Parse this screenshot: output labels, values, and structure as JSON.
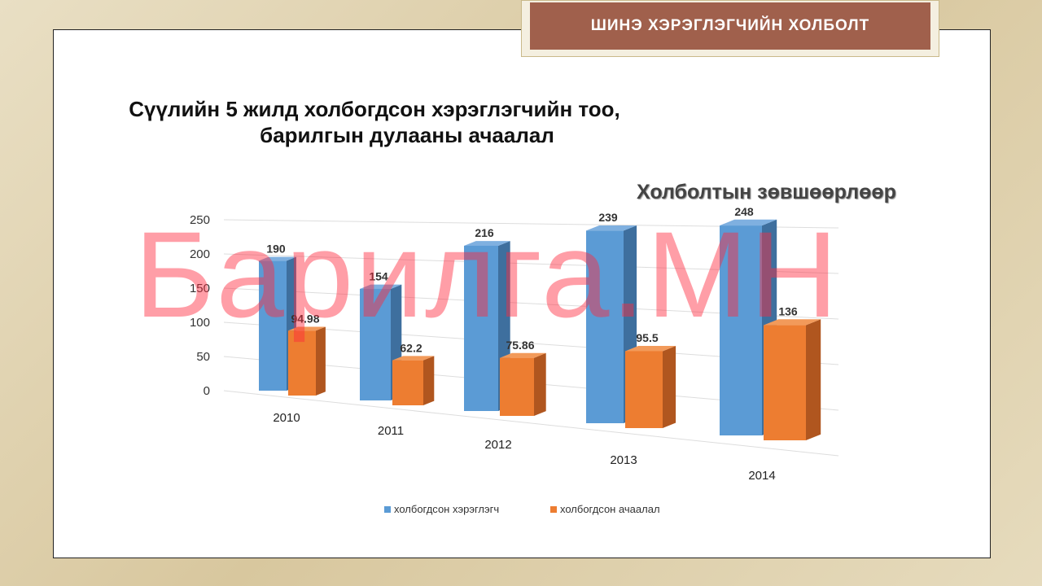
{
  "banner": "ШИНЭ ХЭРЭГЛЭГЧИЙН ХОЛБОЛТ",
  "title_line1": "Сүүлийн 5 жилд холбогдсон хэрэглэгчийн тоо,",
  "title_line2": "барилгын дулааны ачаалал",
  "subtitle": "Холболтын зөвшөөрлөөр",
  "watermark": "Барилга.МН",
  "chart_data": {
    "type": "bar",
    "categories": [
      "2010",
      "2011",
      "2012",
      "2013",
      "2014"
    ],
    "series": [
      {
        "name": "холбогдсон хэрэглэгч",
        "values": [
          190,
          154,
          216,
          239,
          248
        ],
        "labels": [
          "190",
          "154",
          "216",
          "239",
          "248"
        ],
        "color": "#5b9bd5"
      },
      {
        "name": "холбогдсон ачаалал",
        "values": [
          94.98,
          62.2,
          75.86,
          95.5,
          136
        ],
        "labels": [
          "94.98",
          "62.2",
          "75.86",
          "95.5",
          "136"
        ],
        "color": "#ed7d31"
      }
    ],
    "ylim": [
      0,
      250
    ],
    "yticks": [
      "0",
      "50",
      "100",
      "150",
      "200",
      "250"
    ],
    "grid": true,
    "legend": "bottom",
    "style": "3D clustered column"
  }
}
